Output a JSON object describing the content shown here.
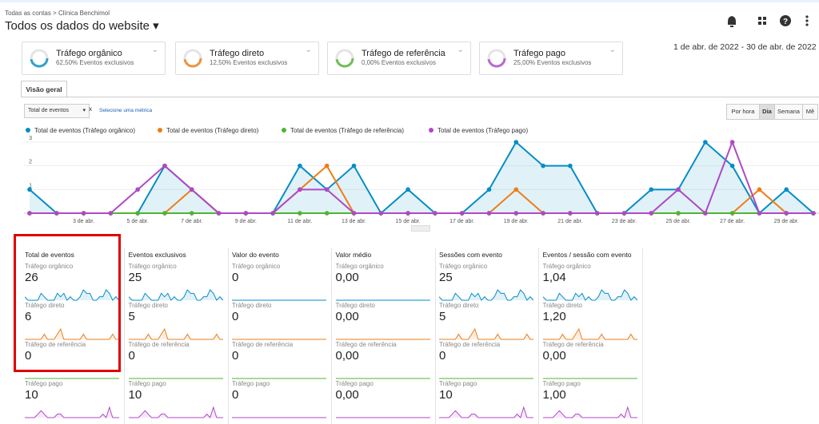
{
  "header": {
    "breadcrumb": [
      "Todas as contas",
      "Clínica Benchimol"
    ],
    "title": "Todos os dados do website"
  },
  "segments": [
    {
      "name": "Tráfego orgânico",
      "detail": "62,50% Eventos exclusivos",
      "color": "#058dc7"
    },
    {
      "name": "Tráfego direto",
      "detail": "12,50% Eventos exclusivos",
      "color": "#ed7e17"
    },
    {
      "name": "Tráfego de referência",
      "detail": "0,00% Eventos exclusivos",
      "color": "#50b432"
    },
    {
      "name": "Tráfego pago",
      "detail": "25,00% Eventos exclusivos",
      "color": "#af49c5"
    }
  ],
  "date_range": "1 de abr. de 2022 - 30 de abr. de 2022",
  "tab": "Visão geral",
  "controls": {
    "metric": "Total de eventos",
    "remove": "x",
    "select": "Selecione uma métrica",
    "periods": [
      "Por hora",
      "Dia",
      "Semana",
      "Mê"
    ]
  },
  "chart_data": {
    "type": "line",
    "categories": [
      null,
      null,
      "3 de abr.",
      null,
      "5 de abr.",
      null,
      "7 de abr.",
      null,
      "9 de abr.",
      null,
      "11 de abr.",
      null,
      "13 de abr.",
      null,
      "15 de abr.",
      null,
      "17 de abr.",
      null,
      "19 de abr.",
      null,
      "21 de abr.",
      null,
      "23 de abr.",
      null,
      "25 de abr.",
      null,
      "27 de abr.",
      null,
      "29 de abr.",
      null
    ],
    "series": [
      {
        "name": "Total de eventos (Tráfego orgânico)",
        "color": "#058dc7",
        "values": [
          1,
          0,
          0,
          0,
          0,
          2,
          1,
          0,
          0,
          0,
          2,
          1,
          2,
          0,
          1,
          0,
          0,
          1,
          3,
          2,
          2,
          0,
          0,
          1,
          1,
          3,
          2,
          0,
          1,
          0
        ]
      },
      {
        "name": "Total de eventos (Tráfego direto)",
        "color": "#ed7e17",
        "values": [
          0,
          0,
          0,
          0,
          0,
          0,
          1,
          0,
          0,
          0,
          1,
          2,
          0,
          0,
          0,
          0,
          0,
          0,
          1,
          0,
          0,
          0,
          0,
          0,
          0,
          0,
          0,
          1,
          0,
          0
        ]
      },
      {
        "name": "Total de eventos (Tráfego de referência)",
        "color": "#50b432",
        "values": [
          0,
          0,
          0,
          0,
          0,
          0,
          0,
          0,
          0,
          0,
          0,
          0,
          0,
          0,
          0,
          0,
          0,
          0,
          0,
          0,
          0,
          0,
          0,
          0,
          0,
          0,
          0,
          0,
          0,
          0
        ]
      },
      {
        "name": "Total de eventos (Tráfego pago)",
        "color": "#af49c5",
        "values": [
          0,
          0,
          0,
          0,
          1,
          2,
          1,
          0,
          0,
          0,
          1,
          1,
          0,
          0,
          0,
          0,
          0,
          0,
          0,
          0,
          0,
          0,
          0,
          0,
          1,
          0,
          3,
          0,
          0,
          0
        ]
      }
    ],
    "ylim": [
      0,
      3
    ],
    "yticks": [
      1,
      2,
      3
    ],
    "grid": true
  },
  "metrics": [
    {
      "title": "Total de eventos",
      "rows": [
        {
          "segment": "Tráfego orgânico",
          "value": "26"
        },
        {
          "segment": "Tráfego direto",
          "value": "6"
        },
        {
          "segment": "Tráfego de referência",
          "value": "0"
        },
        {
          "segment": "Tráfego pago",
          "value": "10"
        }
      ]
    },
    {
      "title": "Eventos exclusivos",
      "rows": [
        {
          "segment": "Tráfego orgânico",
          "value": "25"
        },
        {
          "segment": "Tráfego direto",
          "value": "5"
        },
        {
          "segment": "Tráfego de referência",
          "value": "0"
        },
        {
          "segment": "Tráfego pago",
          "value": "10"
        }
      ]
    },
    {
      "title": "Valor do evento",
      "rows": [
        {
          "segment": "Tráfego orgânico",
          "value": "0"
        },
        {
          "segment": "Tráfego direto",
          "value": "0"
        },
        {
          "segment": "Tráfego de referência",
          "value": "0"
        },
        {
          "segment": "Tráfego pago",
          "value": "0"
        }
      ]
    },
    {
      "title": "Valor médio",
      "rows": [
        {
          "segment": "Tráfego orgânico",
          "value": "0,00"
        },
        {
          "segment": "Tráfego direto",
          "value": "0,00"
        },
        {
          "segment": "Tráfego de referência",
          "value": "0,00"
        },
        {
          "segment": "Tráfego pago",
          "value": "0,00"
        }
      ]
    },
    {
      "title": "Sessões com evento",
      "rows": [
        {
          "segment": "Tráfego orgânico",
          "value": "25"
        },
        {
          "segment": "Tráfego direto",
          "value": "5"
        },
        {
          "segment": "Tráfego de referência",
          "value": "0"
        },
        {
          "segment": "Tráfego pago",
          "value": "10"
        }
      ]
    },
    {
      "title": "Eventos / sessão com evento",
      "rows": [
        {
          "segment": "Tráfego orgânico",
          "value": "1,04"
        },
        {
          "segment": "Tráfego direto",
          "value": "1,20"
        },
        {
          "segment": "Tráfego de referência",
          "value": "0,00"
        },
        {
          "segment": "Tráfego pago",
          "value": "1,00"
        }
      ]
    }
  ]
}
